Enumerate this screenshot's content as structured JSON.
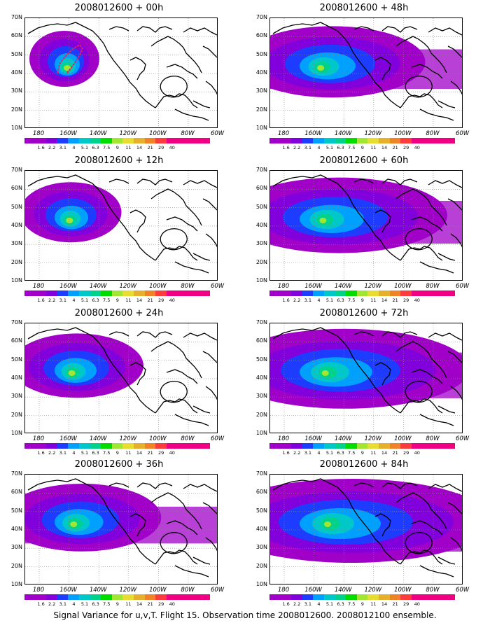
{
  "panels": [
    {
      "title": "2008012600 + 00h",
      "spread": 0.0
    },
    {
      "title": "2008012600 + 48h",
      "spread": 0.55
    },
    {
      "title": "2008012600 + 12h",
      "spread": 0.15
    },
    {
      "title": "2008012600 + 60h",
      "spread": 0.7
    },
    {
      "title": "2008012600 + 24h",
      "spread": 0.3
    },
    {
      "title": "2008012600 + 72h",
      "spread": 0.85
    },
    {
      "title": "2008012600 + 36h",
      "spread": 0.42
    },
    {
      "title": "2008012600 + 84h",
      "spread": 1.0
    }
  ],
  "lat_labels": [
    "70N",
    "60N",
    "50N",
    "40N",
    "30N",
    "20N",
    "10N"
  ],
  "lon_labels": [
    "180",
    "160W",
    "140W",
    "120W",
    "100W",
    "80W",
    "60W"
  ],
  "colorbar": {
    "labels": [
      "1.6",
      "2.2",
      "3.1",
      "4",
      "5.1",
      "6.3",
      "7.5",
      "9",
      "11",
      "14",
      "21",
      "29",
      "40"
    ],
    "colors": [
      "#a000c8",
      "#8200dc",
      "#1e3cff",
      "#00a0ff",
      "#00c8c8",
      "#00d28c",
      "#00dc00",
      "#a0e632",
      "#e6dc32",
      "#e6af2d",
      "#f08228",
      "#fa3c3c",
      "#f00082"
    ]
  },
  "caption": "Signal Variance for u,v,T. Flight 15. Observation time 2008012600. 2008012100 ensemble."
}
